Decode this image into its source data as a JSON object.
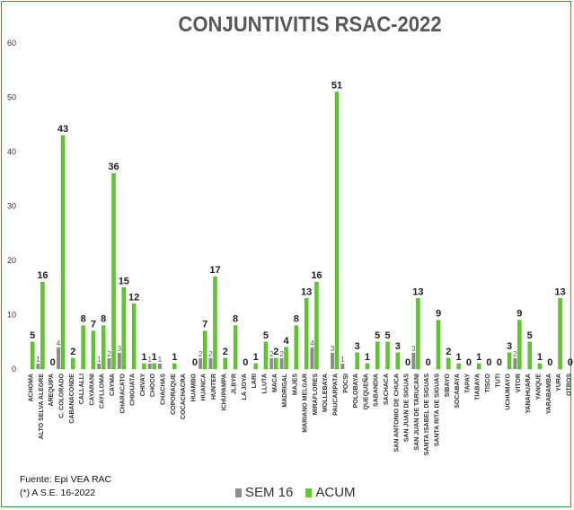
{
  "chart_data": {
    "type": "bar",
    "title": "CONJUNTIVITIS RSAC-2022",
    "ylim": [
      0,
      60
    ],
    "yticks": [
      0,
      10,
      20,
      30,
      40,
      50,
      60
    ],
    "grid": false,
    "legend_position": "bottom",
    "categories": [
      "ACHOMA",
      "ALTO SELVA ALEGRE",
      "AREQUIPA",
      "C. COLORADO",
      "CABANACONDE",
      "CALLALLI",
      "CAYARANI",
      "CAYLLOMA",
      "CAYMA",
      "CHARACATO",
      "CHIGUATA",
      "CHIVAY",
      "CHOCO",
      "CHACHAS",
      "COPORAQUE",
      "COCACHACRA",
      "HUAMBO",
      "HUANCA",
      "HUNTER",
      "ICHUPAMPA",
      "JLBYR",
      "LA JOYA",
      "LARI",
      "LLUTA",
      "MACA",
      "MADRIGAL",
      "MAJES",
      "MARIANO MELGAR",
      "MIRAFLORES",
      "MOLLEBAYA",
      "PAUCARPATA",
      "POCSI",
      "POLOBAYA",
      "QUEQUEÑA",
      "SABANDIA",
      "SACHACA",
      "SAN ANTONIO DE CHUCA",
      "SAN JUAN DE SIGUAS",
      "SAN JUAN DE TARUCANI",
      "SANTA ISABEL DE SIGUAS",
      "SANTA RITA DE SIGUAS",
      "SIBAYO",
      "SOCABAYA",
      "TAPAY",
      "TIABAYA",
      "TISCO",
      "TUTI",
      "UCHUMAYO",
      "VITOR",
      "YANAHUARA",
      "YANQUE",
      "YARABAMBA",
      "YURA",
      "OTROS"
    ],
    "series": [
      {
        "name": "SEM 16",
        "color": "#8c8c8c",
        "values": [
          null,
          1,
          null,
          4,
          null,
          null,
          null,
          1,
          2,
          3,
          null,
          null,
          1,
          1,
          null,
          null,
          null,
          2,
          2,
          null,
          null,
          null,
          null,
          null,
          2,
          2,
          null,
          null,
          4,
          null,
          3,
          1,
          null,
          null,
          null,
          null,
          null,
          null,
          3,
          null,
          null,
          null,
          null,
          null,
          null,
          null,
          null,
          null,
          2,
          null,
          null,
          null,
          null,
          null
        ]
      },
      {
        "name": "ACUM",
        "color": "#5fc82a",
        "values": [
          5,
          16,
          0,
          43,
          2,
          8,
          7,
          8,
          36,
          15,
          12,
          1,
          1,
          null,
          1,
          null,
          0,
          7,
          17,
          2,
          8,
          0,
          1,
          5,
          2,
          4,
          8,
          13,
          16,
          null,
          51,
          null,
          3,
          1,
          5,
          5,
          3,
          0,
          13,
          0,
          9,
          2,
          1,
          0,
          1,
          0,
          0,
          3,
          9,
          5,
          1,
          0,
          13,
          0
        ]
      }
    ]
  },
  "footnotes": {
    "source": "Fuente:  Epi VEA RAC",
    "period": "(*) A S.E. 16-2022"
  }
}
